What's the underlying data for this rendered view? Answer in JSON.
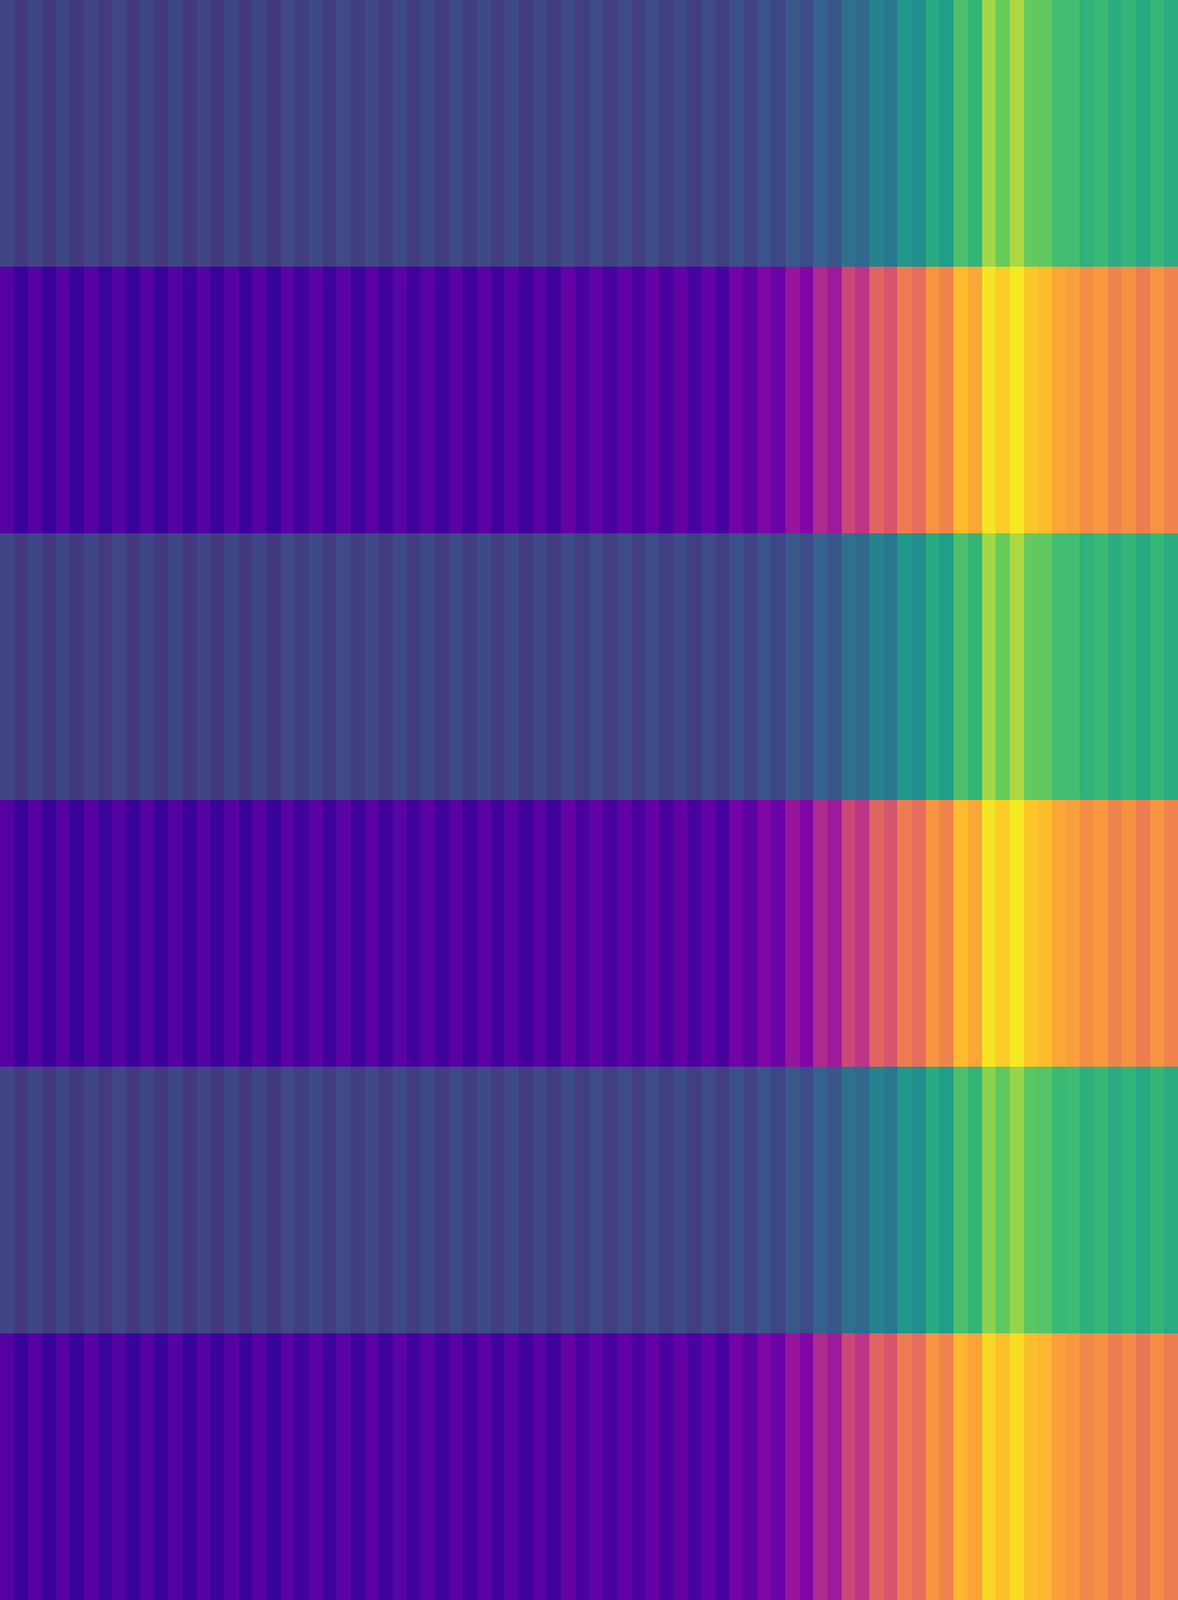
{
  "chart_data": [
    {
      "type": "heatmap",
      "color": "viridis",
      "color_range": [
        0,
        1
      ],
      "tick_labels": false,
      "cells": [
        [
          0.24,
          0.19,
          0.24,
          0.19,
          0.24,
          0.19,
          0.24,
          0.19,
          0.24,
          0.19,
          0.24,
          0.19,
          0.24,
          0.19,
          0.24,
          0.19,
          0.24,
          0.19,
          0.24,
          0.19,
          0.25,
          0.2,
          0.25,
          0.2,
          0.25,
          0.2,
          0.25,
          0.2,
          0.25,
          0.2,
          0.25,
          0.2,
          0.25,
          0.2,
          0.25,
          0.2,
          0.25,
          0.2,
          0.25,
          0.2,
          0.26,
          0.21,
          0.26,
          0.21,
          0.26,
          0.21,
          0.26,
          0.21,
          0.26,
          0.21,
          0.26,
          0.21,
          0.28,
          0.23,
          0.29,
          0.24,
          0.31,
          0.26,
          0.35,
          0.31,
          0.42,
          0.38,
          0.5,
          0.45,
          0.6,
          0.55,
          0.68,
          0.63,
          0.8,
          0.74,
          0.92,
          0.86,
          0.93,
          0.85,
          0.84,
          0.78,
          0.78,
          0.72,
          0.76,
          0.7,
          0.74,
          0.68,
          0.75,
          0.7
        ]
      ]
    },
    {
      "type": "heatmap",
      "color": "plasma",
      "color_range": [
        0,
        1
      ],
      "tick_labels": false,
      "cells": [
        [
          0.15,
          0.09,
          0.15,
          0.09,
          0.15,
          0.09,
          0.15,
          0.09,
          0.15,
          0.09,
          0.15,
          0.09,
          0.15,
          0.09,
          0.15,
          0.09,
          0.15,
          0.09,
          0.15,
          0.09,
          0.16,
          0.1,
          0.16,
          0.1,
          0.16,
          0.1,
          0.16,
          0.1,
          0.16,
          0.1,
          0.16,
          0.1,
          0.16,
          0.1,
          0.16,
          0.1,
          0.16,
          0.1,
          0.16,
          0.1,
          0.18,
          0.12,
          0.18,
          0.12,
          0.18,
          0.12,
          0.18,
          0.12,
          0.18,
          0.12,
          0.18,
          0.12,
          0.22,
          0.16,
          0.26,
          0.2,
          0.32,
          0.26,
          0.4,
          0.34,
          0.5,
          0.44,
          0.6,
          0.55,
          0.68,
          0.63,
          0.75,
          0.7,
          0.85,
          0.8,
          0.95,
          0.9,
          0.96,
          0.88,
          0.86,
          0.8,
          0.78,
          0.73,
          0.76,
          0.7,
          0.74,
          0.68,
          0.75,
          0.7
        ]
      ]
    },
    {
      "type": "heatmap",
      "color": "viridis",
      "color_range": [
        0,
        1
      ],
      "tick_labels": false,
      "cells": [
        [
          0.24,
          0.19,
          0.24,
          0.19,
          0.24,
          0.19,
          0.24,
          0.19,
          0.24,
          0.19,
          0.24,
          0.19,
          0.24,
          0.19,
          0.24,
          0.19,
          0.24,
          0.19,
          0.24,
          0.19,
          0.25,
          0.2,
          0.25,
          0.2,
          0.25,
          0.2,
          0.25,
          0.2,
          0.25,
          0.2,
          0.25,
          0.2,
          0.25,
          0.2,
          0.25,
          0.2,
          0.25,
          0.2,
          0.25,
          0.2,
          0.26,
          0.21,
          0.26,
          0.21,
          0.26,
          0.21,
          0.26,
          0.21,
          0.26,
          0.21,
          0.26,
          0.21,
          0.28,
          0.23,
          0.29,
          0.24,
          0.31,
          0.26,
          0.35,
          0.31,
          0.42,
          0.38,
          0.5,
          0.45,
          0.6,
          0.55,
          0.68,
          0.63,
          0.8,
          0.74,
          0.92,
          0.86,
          0.93,
          0.85,
          0.84,
          0.78,
          0.78,
          0.72,
          0.76,
          0.7,
          0.74,
          0.68,
          0.75,
          0.7
        ]
      ]
    },
    {
      "type": "heatmap",
      "color": "plasma",
      "color_range": [
        0,
        1
      ],
      "tick_labels": false,
      "cells": [
        [
          0.15,
          0.09,
          0.15,
          0.09,
          0.15,
          0.09,
          0.15,
          0.09,
          0.15,
          0.09,
          0.15,
          0.09,
          0.15,
          0.09,
          0.15,
          0.09,
          0.15,
          0.09,
          0.15,
          0.09,
          0.16,
          0.1,
          0.16,
          0.1,
          0.16,
          0.1,
          0.16,
          0.1,
          0.16,
          0.1,
          0.16,
          0.1,
          0.16,
          0.1,
          0.16,
          0.1,
          0.16,
          0.1,
          0.16,
          0.1,
          0.18,
          0.12,
          0.18,
          0.12,
          0.18,
          0.12,
          0.18,
          0.12,
          0.18,
          0.12,
          0.18,
          0.12,
          0.22,
          0.16,
          0.26,
          0.2,
          0.32,
          0.26,
          0.4,
          0.34,
          0.5,
          0.44,
          0.6,
          0.55,
          0.68,
          0.63,
          0.75,
          0.7,
          0.85,
          0.8,
          0.95,
          0.9,
          0.96,
          0.88,
          0.86,
          0.8,
          0.78,
          0.73,
          0.76,
          0.7,
          0.74,
          0.68,
          0.75,
          0.7
        ]
      ]
    },
    {
      "type": "heatmap",
      "color": "viridis",
      "color_range": [
        0,
        1
      ],
      "tick_labels": false,
      "cells": [
        [
          0.24,
          0.19,
          0.24,
          0.19,
          0.24,
          0.19,
          0.24,
          0.19,
          0.24,
          0.19,
          0.24,
          0.19,
          0.24,
          0.19,
          0.24,
          0.19,
          0.24,
          0.19,
          0.24,
          0.19,
          0.25,
          0.2,
          0.25,
          0.2,
          0.25,
          0.2,
          0.25,
          0.2,
          0.25,
          0.2,
          0.25,
          0.2,
          0.25,
          0.2,
          0.25,
          0.2,
          0.25,
          0.2,
          0.25,
          0.2,
          0.26,
          0.21,
          0.26,
          0.21,
          0.26,
          0.21,
          0.26,
          0.21,
          0.26,
          0.21,
          0.26,
          0.21,
          0.28,
          0.23,
          0.29,
          0.24,
          0.31,
          0.26,
          0.35,
          0.31,
          0.42,
          0.38,
          0.5,
          0.45,
          0.6,
          0.55,
          0.68,
          0.63,
          0.8,
          0.74,
          0.9,
          0.84,
          0.91,
          0.83,
          0.82,
          0.76,
          0.77,
          0.71,
          0.75,
          0.69,
          0.73,
          0.67,
          0.74,
          0.69
        ]
      ]
    },
    {
      "type": "heatmap",
      "color": "plasma",
      "color_range": [
        0,
        1
      ],
      "tick_labels": false,
      "cells": [
        [
          0.15,
          0.09,
          0.15,
          0.09,
          0.15,
          0.09,
          0.15,
          0.09,
          0.15,
          0.09,
          0.15,
          0.09,
          0.15,
          0.09,
          0.15,
          0.09,
          0.15,
          0.09,
          0.15,
          0.09,
          0.16,
          0.1,
          0.16,
          0.1,
          0.16,
          0.1,
          0.16,
          0.1,
          0.16,
          0.1,
          0.16,
          0.1,
          0.16,
          0.1,
          0.16,
          0.1,
          0.16,
          0.1,
          0.16,
          0.1,
          0.18,
          0.12,
          0.18,
          0.12,
          0.18,
          0.12,
          0.18,
          0.12,
          0.18,
          0.12,
          0.18,
          0.12,
          0.22,
          0.16,
          0.26,
          0.2,
          0.32,
          0.26,
          0.4,
          0.34,
          0.5,
          0.44,
          0.6,
          0.55,
          0.68,
          0.63,
          0.75,
          0.7,
          0.84,
          0.79,
          0.92,
          0.87,
          0.93,
          0.86,
          0.84,
          0.78,
          0.76,
          0.71,
          0.74,
          0.68,
          0.72,
          0.66,
          0.73,
          0.68
        ]
      ]
    }
  ]
}
